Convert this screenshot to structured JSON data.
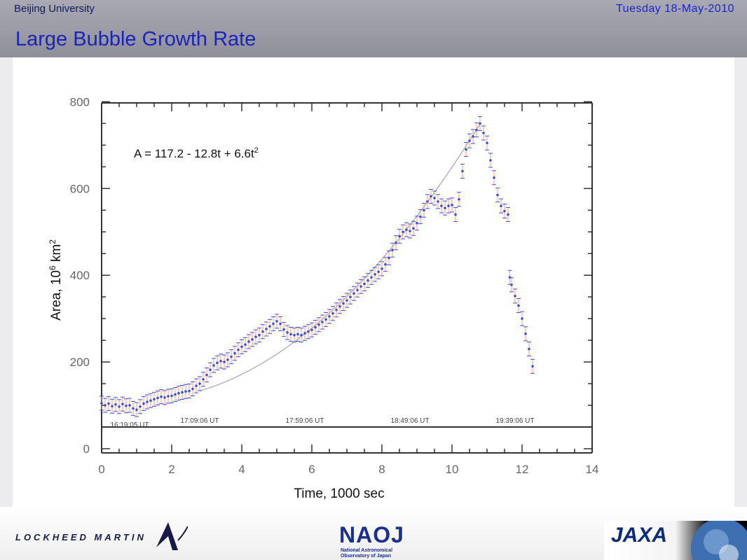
{
  "header": {
    "left": "Beijing University",
    "right": "Tuesday  18-May-2010",
    "title": "Large Bubble Growth Rate"
  },
  "colors": {
    "header_band": "#9a9aa5",
    "title": "#1a24b8",
    "data_points": "#3a4fe0",
    "error_bars": "#ff9a7a",
    "fit_curve": "#b0b0b0"
  },
  "chart_data": {
    "type": "scatter",
    "xlabel": "Time, 1000 sec",
    "ylabel_main": "Area, 10",
    "ylabel_sup": "6",
    "ylabel_unit": " km",
    "ylabel_unit_sup": "2",
    "xlim": [
      0,
      14
    ],
    "ylim": [
      0,
      800
    ],
    "xticks": [
      0,
      2,
      4,
      6,
      8,
      10,
      12,
      14
    ],
    "yticks": [
      0,
      200,
      400,
      600,
      800
    ],
    "grid": false,
    "annotation": {
      "text": "A = 117.2 - 12.8t + 6.6t",
      "sup": "2"
    },
    "fit": {
      "label": "A = 117.2 - 12.8t + 6.6t2",
      "a0": 117.2,
      "a1": -12.8,
      "a2": 6.6,
      "x_range": [
        2.8,
        10.8
      ]
    },
    "time_labels": [
      {
        "x": 0.8,
        "text": "16:19:05 UT"
      },
      {
        "x": 2.8,
        "text": "17:09:06 UT"
      },
      {
        "x": 5.8,
        "text": "17:59:06 UT"
      },
      {
        "x": 8.8,
        "text": "18:49:06 UT"
      },
      {
        "x": 11.8,
        "text": "19:39:06 UT"
      }
    ],
    "baseline_y": 50,
    "series": [
      {
        "points": [
          [
            0.0,
            105
          ],
          [
            0.1,
            100
          ],
          [
            0.2,
            104
          ],
          [
            0.3,
            98
          ],
          [
            0.4,
            102
          ],
          [
            0.5,
            97
          ],
          [
            0.6,
            103
          ],
          [
            0.7,
            99
          ],
          [
            0.8,
            100
          ],
          [
            0.9,
            93
          ],
          [
            1.0,
            90
          ],
          [
            1.1,
            97
          ],
          [
            1.2,
            104
          ],
          [
            1.3,
            108
          ],
          [
            1.4,
            111
          ],
          [
            1.5,
            114
          ],
          [
            1.6,
            117
          ],
          [
            1.7,
            120
          ],
          [
            1.8,
            118
          ],
          [
            1.9,
            121
          ],
          [
            2.0,
            122
          ],
          [
            2.1,
            125
          ],
          [
            2.2,
            128
          ],
          [
            2.3,
            130
          ],
          [
            2.4,
            132
          ],
          [
            2.5,
            133
          ],
          [
            2.6,
            138
          ],
          [
            2.7,
            145
          ],
          [
            2.8,
            150
          ],
          [
            2.9,
            160
          ],
          [
            3.0,
            170
          ],
          [
            3.1,
            182
          ],
          [
            3.2,
            192
          ],
          [
            3.3,
            198
          ],
          [
            3.4,
            202
          ],
          [
            3.5,
            200
          ],
          [
            3.6,
            205
          ],
          [
            3.7,
            212
          ],
          [
            3.8,
            220
          ],
          [
            3.9,
            228
          ],
          [
            4.0,
            235
          ],
          [
            4.1,
            240
          ],
          [
            4.2,
            247
          ],
          [
            4.3,
            252
          ],
          [
            4.4,
            258
          ],
          [
            4.5,
            262
          ],
          [
            4.6,
            270
          ],
          [
            4.7,
            276
          ],
          [
            4.8,
            282
          ],
          [
            4.9,
            288
          ],
          [
            5.0,
            294
          ],
          [
            5.1,
            288
          ],
          [
            5.2,
            275
          ],
          [
            5.3,
            268
          ],
          [
            5.4,
            264
          ],
          [
            5.5,
            262
          ],
          [
            5.6,
            264
          ],
          [
            5.7,
            262
          ],
          [
            5.8,
            266
          ],
          [
            5.9,
            270
          ],
          [
            6.0,
            274
          ],
          [
            6.1,
            280
          ],
          [
            6.2,
            286
          ],
          [
            6.3,
            292
          ],
          [
            6.4,
            298
          ],
          [
            6.5,
            305
          ],
          [
            6.6,
            312
          ],
          [
            6.7,
            320
          ],
          [
            6.8,
            328
          ],
          [
            6.9,
            335
          ],
          [
            7.0,
            342
          ],
          [
            7.1,
            350
          ],
          [
            7.2,
            358
          ],
          [
            7.3,
            366
          ],
          [
            7.4,
            374
          ],
          [
            7.5,
            380
          ],
          [
            7.6,
            388
          ],
          [
            7.7,
            395
          ],
          [
            7.8,
            402
          ],
          [
            7.9,
            408
          ],
          [
            8.0,
            415
          ],
          [
            8.1,
            425
          ],
          [
            8.2,
            440
          ],
          [
            8.3,
            458
          ],
          [
            8.4,
            475
          ],
          [
            8.5,
            490
          ],
          [
            8.6,
            500
          ],
          [
            8.7,
            505
          ],
          [
            8.8,
            502
          ],
          [
            8.9,
            508
          ],
          [
            9.0,
            520
          ],
          [
            9.1,
            535
          ],
          [
            9.2,
            550
          ],
          [
            9.3,
            570
          ],
          [
            9.4,
            582
          ],
          [
            9.5,
            578
          ],
          [
            9.6,
            570
          ],
          [
            9.7,
            560
          ],
          [
            9.8,
            555
          ],
          [
            9.9,
            560
          ],
          [
            10.0,
            562
          ],
          [
            10.1,
            540
          ],
          [
            10.2,
            575
          ],
          [
            10.3,
            640
          ],
          [
            10.4,
            690
          ],
          [
            10.5,
            710
          ],
          [
            10.6,
            720
          ],
          [
            10.7,
            735
          ],
          [
            10.8,
            750
          ],
          [
            10.9,
            728
          ],
          [
            11.0,
            705
          ],
          [
            11.1,
            665
          ],
          [
            11.2,
            625
          ],
          [
            11.3,
            585
          ],
          [
            11.4,
            560
          ],
          [
            11.5,
            548
          ],
          [
            11.6,
            540
          ],
          [
            11.65,
            395
          ],
          [
            11.7,
            378
          ],
          [
            11.8,
            352
          ],
          [
            11.9,
            330
          ],
          [
            12.0,
            300
          ],
          [
            12.1,
            265
          ],
          [
            12.2,
            230
          ],
          [
            12.3,
            190
          ]
        ]
      }
    ]
  }
}
